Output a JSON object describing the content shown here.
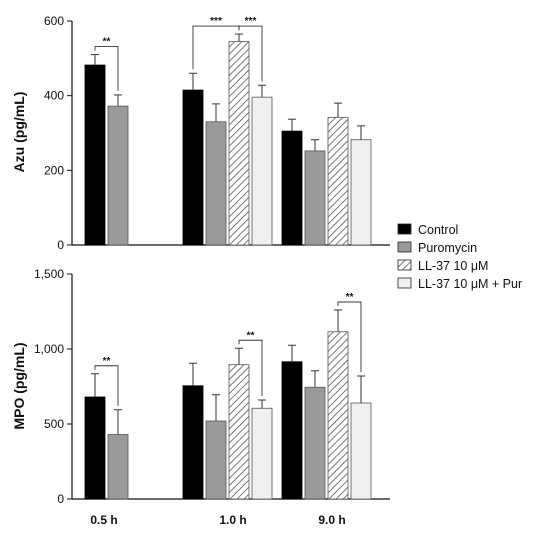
{
  "chart_data": [
    {
      "type": "bar",
      "ylabel": "Azu (pg/mL)",
      "ylim": [
        0,
        600
      ],
      "yticks": [
        "0",
        "200",
        "400",
        "600"
      ],
      "categories": [
        "0.5 h",
        "1.0 h",
        "9.0 h"
      ],
      "series": [
        {
          "name": "Control",
          "values": [
            482,
            415,
            305
          ],
          "errors": [
            28,
            45,
            32
          ]
        },
        {
          "name": "Puromycin",
          "values": [
            372,
            330,
            252
          ],
          "errors": [
            30,
            48,
            30
          ]
        },
        {
          "name": "LL-37 10 μM",
          "values": [
            null,
            545,
            342
          ],
          "errors": [
            null,
            20,
            38
          ]
        },
        {
          "name": "LL-37 10 μM + Pur",
          "values": [
            null,
            396,
            282
          ],
          "errors": [
            null,
            32,
            37
          ]
        }
      ],
      "significance": [
        {
          "label": "**",
          "category": 0,
          "from": 0,
          "to": 1
        },
        {
          "label": "***",
          "category": 1,
          "from": 0,
          "to": 2
        },
        {
          "label": "***",
          "category": 1,
          "from": 2,
          "to": 3
        }
      ]
    },
    {
      "type": "bar",
      "ylabel": "MPO (pg/mL)",
      "ylim": [
        0,
        1500
      ],
      "yticks": [
        "0",
        "500",
        "1,000",
        "1,500"
      ],
      "categories": [
        "0.5 h",
        "1.0 h",
        "9.0 h"
      ],
      "series": [
        {
          "name": "Control",
          "values": [
            680,
            755,
            915
          ],
          "errors": [
            155,
            150,
            110
          ]
        },
        {
          "name": "Puromycin",
          "values": [
            430,
            520,
            745
          ],
          "errors": [
            165,
            175,
            110
          ]
        },
        {
          "name": "LL-37 10 μM",
          "values": [
            null,
            895,
            1115
          ],
          "errors": [
            null,
            110,
            145
          ]
        },
        {
          "name": "LL-37 10 μM + Pur",
          "values": [
            null,
            605,
            640
          ],
          "errors": [
            null,
            55,
            180
          ]
        }
      ],
      "significance": [
        {
          "label": "**",
          "category": 0,
          "from": 0,
          "to": 1
        },
        {
          "label": "**",
          "category": 1,
          "from": 2,
          "to": 3
        },
        {
          "label": "**",
          "category": 2,
          "from": 2,
          "to": 3
        }
      ]
    }
  ],
  "legend": {
    "placement": "right",
    "items": [
      {
        "label": "Control",
        "fill": "#000000",
        "pattern": "solid"
      },
      {
        "label": "Puromycin",
        "fill": "#9a9a9a",
        "pattern": "solid"
      },
      {
        "label": "LL-37 10 μM",
        "fill": "#ffffff",
        "pattern": "hatched"
      },
      {
        "label": "LL-37 10 μM + Pur",
        "fill": "#f0f0f0",
        "pattern": "solid"
      }
    ]
  },
  "colors": {
    "control": "#000000",
    "puromycin": "#9a9a9a",
    "ll37": "#ffffff",
    "ll37_pur": "#f0f0f0",
    "axis": "#111111"
  }
}
